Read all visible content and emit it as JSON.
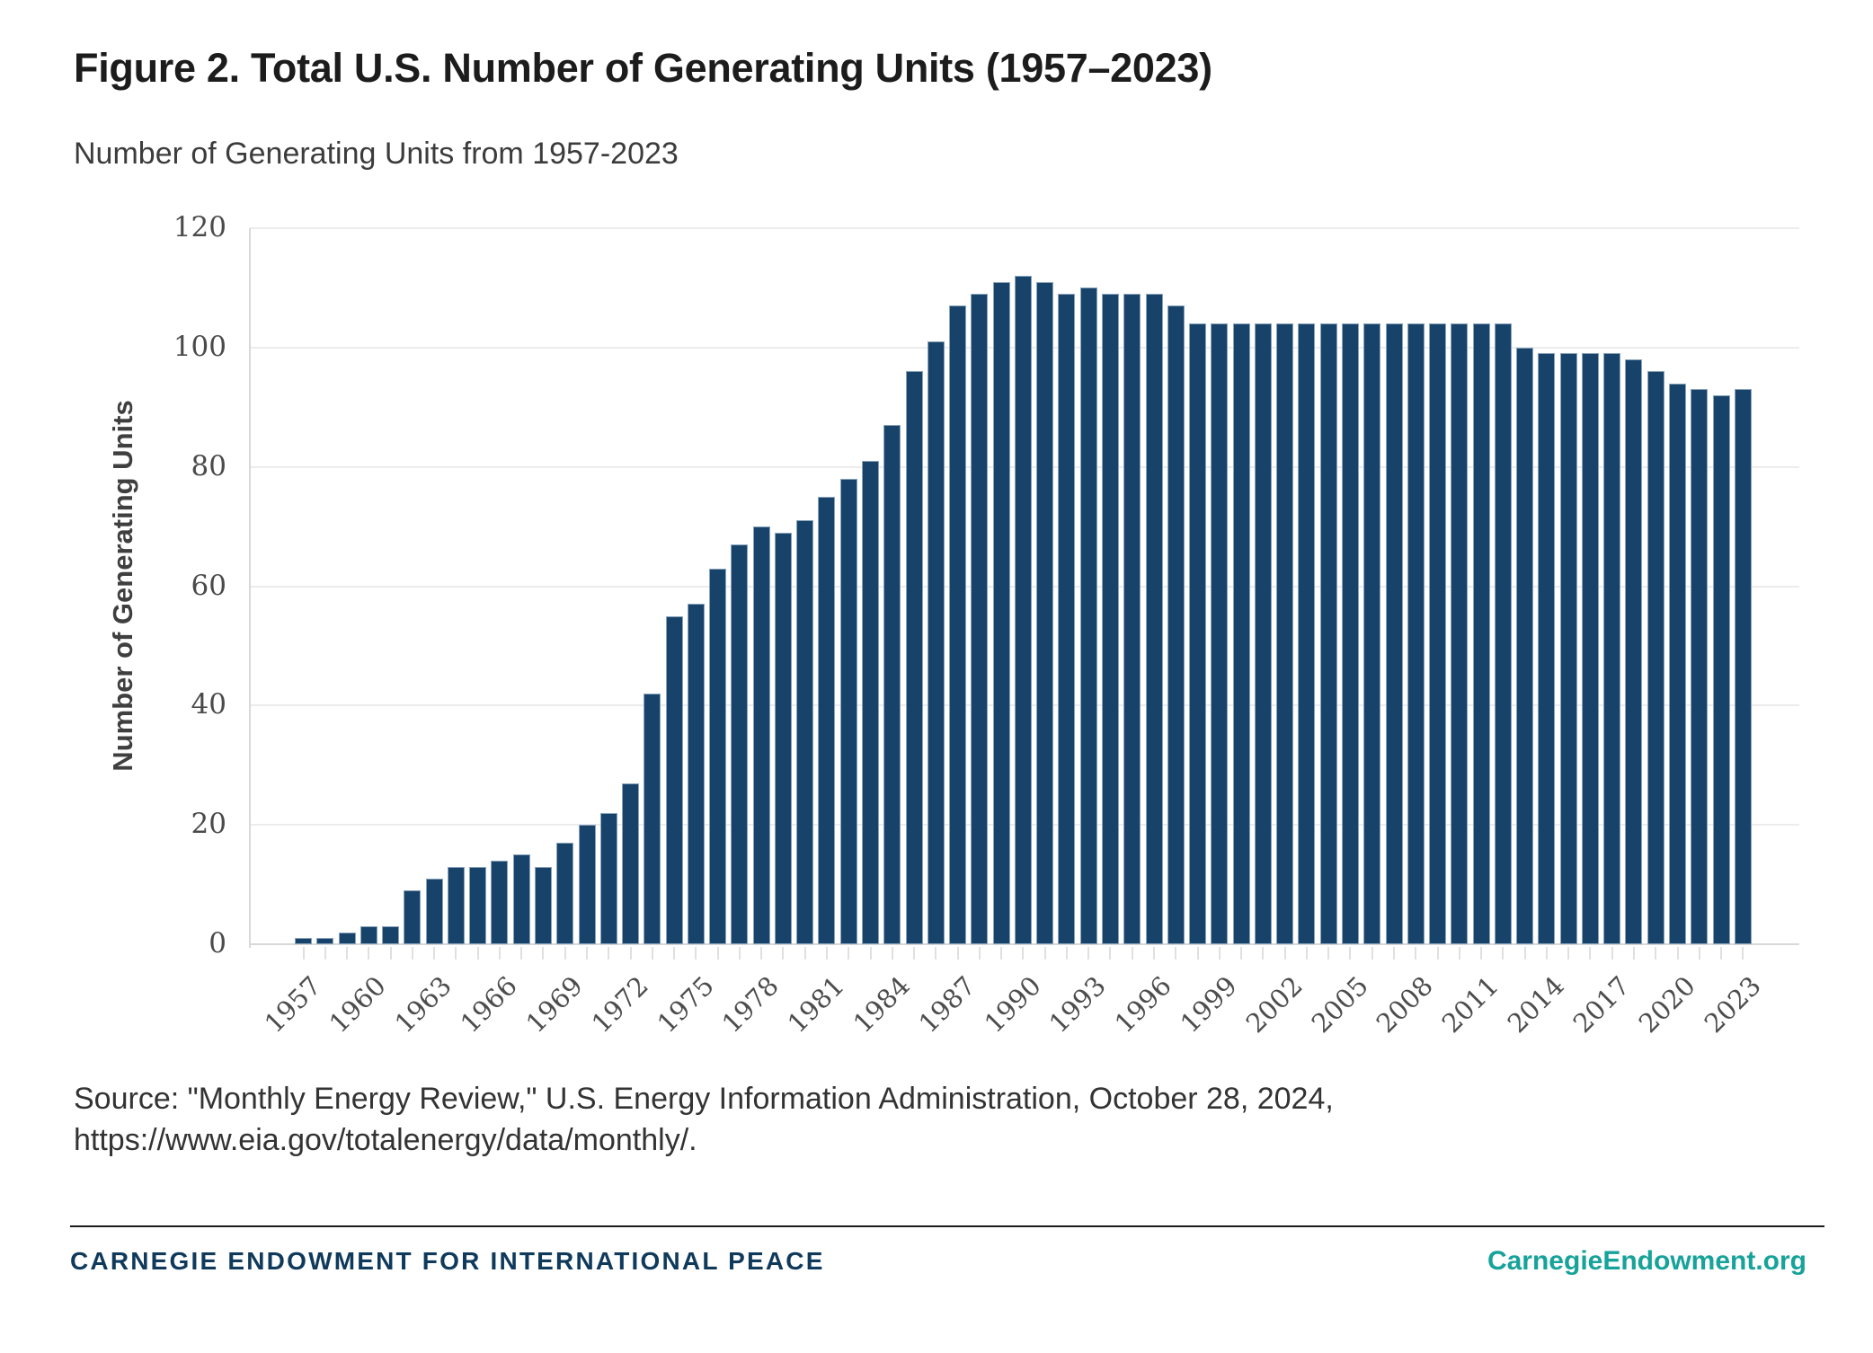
{
  "page": {
    "title": "Figure 2. Total U.S. Number of Generating Units (1957–2023)",
    "subtitle": "Number of Generating Units from 1957-2023",
    "source_line1": "Source: \"Monthly Energy Review,\" U.S. Energy Information Administration, October 28, 2024,",
    "source_line2": "https://www.eia.gov/totalenergy/data/monthly/."
  },
  "footer": {
    "org": "CARNEGIE ENDOWMENT FOR INTERNATIONAL PEACE",
    "site": "CarnegieEndowment.org"
  },
  "chart_data": {
    "type": "bar",
    "title": "Number of Generating Units from 1957-2023",
    "xlabel": "",
    "ylabel": "Number of Generating Units",
    "ylim": [
      0,
      120
    ],
    "y_ticks": [
      0,
      20,
      40,
      60,
      80,
      100,
      120
    ],
    "x_tick_label_interval": 3,
    "grid": "horizontal",
    "legend": "none",
    "bar_color": "#17436B",
    "categories": [
      1957,
      1958,
      1959,
      1960,
      1961,
      1962,
      1963,
      1964,
      1965,
      1966,
      1967,
      1968,
      1969,
      1970,
      1971,
      1972,
      1973,
      1974,
      1975,
      1976,
      1977,
      1978,
      1979,
      1980,
      1981,
      1982,
      1983,
      1984,
      1985,
      1986,
      1987,
      1988,
      1989,
      1990,
      1991,
      1992,
      1993,
      1994,
      1995,
      1996,
      1997,
      1998,
      1999,
      2000,
      2001,
      2002,
      2003,
      2004,
      2005,
      2006,
      2007,
      2008,
      2009,
      2010,
      2011,
      2012,
      2013,
      2014,
      2015,
      2016,
      2017,
      2018,
      2019,
      2020,
      2021,
      2022,
      2023
    ],
    "values": [
      1,
      1,
      2,
      3,
      3,
      9,
      11,
      13,
      13,
      14,
      15,
      13,
      17,
      20,
      22,
      27,
      42,
      55,
      57,
      63,
      67,
      70,
      69,
      71,
      75,
      78,
      81,
      87,
      96,
      101,
      107,
      109,
      111,
      112,
      111,
      109,
      110,
      109,
      109,
      109,
      107,
      104,
      104,
      104,
      104,
      104,
      104,
      104,
      104,
      104,
      104,
      104,
      104,
      104,
      104,
      104,
      100,
      99,
      99,
      99,
      99,
      98,
      96,
      94,
      93,
      92,
      93
    ]
  }
}
